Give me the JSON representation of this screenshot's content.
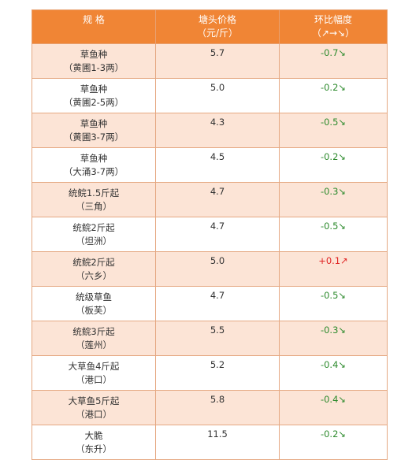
{
  "header": {
    "col1": "规 格",
    "col2_line1": "塘头价格",
    "col2_line2": "（元/斤）",
    "col3_line1": "环比幅度",
    "col3_line2": "（↗→↘）"
  },
  "rows": [
    {
      "spec": "草鱼种",
      "origin": "（黄圃1-3两）",
      "price": "5.7",
      "change": "-0.7",
      "arrow": "↘",
      "direction": "down"
    },
    {
      "spec": "草鱼种",
      "origin": "（黄圃2-5两）",
      "price": "5.0",
      "change": "-0.2",
      "arrow": "↘",
      "direction": "down"
    },
    {
      "spec": "草鱼种",
      "origin": "（黄圃3-7两）",
      "price": "4.3",
      "change": "-0.5",
      "arrow": "↘",
      "direction": "down"
    },
    {
      "spec": "草鱼种",
      "origin": "（大涌3-7两）",
      "price": "4.5",
      "change": "-0.2",
      "arrow": "↘",
      "direction": "down"
    },
    {
      "spec": "统鲩1.5斤起",
      "origin": "（三角）",
      "price": "4.7",
      "change": "-0.3",
      "arrow": "↘",
      "direction": "down"
    },
    {
      "spec": "统鲩2斤起",
      "origin": "（坦洲）",
      "price": "4.7",
      "change": "-0.5",
      "arrow": "↘",
      "direction": "down"
    },
    {
      "spec": "统鲩2斤起",
      "origin": "（六乡）",
      "price": "5.0",
      "change": "+0.1",
      "arrow": "↗",
      "direction": "up"
    },
    {
      "spec": "统级草鱼",
      "origin": "（板芙）",
      "price": "4.7",
      "change": "-0.5",
      "arrow": "↘",
      "direction": "down"
    },
    {
      "spec": "统鲩3斤起",
      "origin": "（莲州）",
      "price": "5.5",
      "change": "-0.3",
      "arrow": "↘",
      "direction": "down"
    },
    {
      "spec": "大草鱼4斤起",
      "origin": "（港口）",
      "price": "5.2",
      "change": "-0.4",
      "arrow": "↘",
      "direction": "down"
    },
    {
      "spec": "大草鱼5斤起",
      "origin": "（港口）",
      "price": "5.8",
      "change": "-0.4",
      "arrow": "↘",
      "direction": "down"
    },
    {
      "spec": "大脆",
      "origin": "（东升）",
      "price": "11.5",
      "change": "-0.2",
      "arrow": "↘",
      "direction": "down"
    }
  ],
  "colors": {
    "header_bg": "#F08535",
    "stripe_bg": "#FCE4D6",
    "down_color": "#2E8B2E",
    "up_color": "#E02424"
  }
}
